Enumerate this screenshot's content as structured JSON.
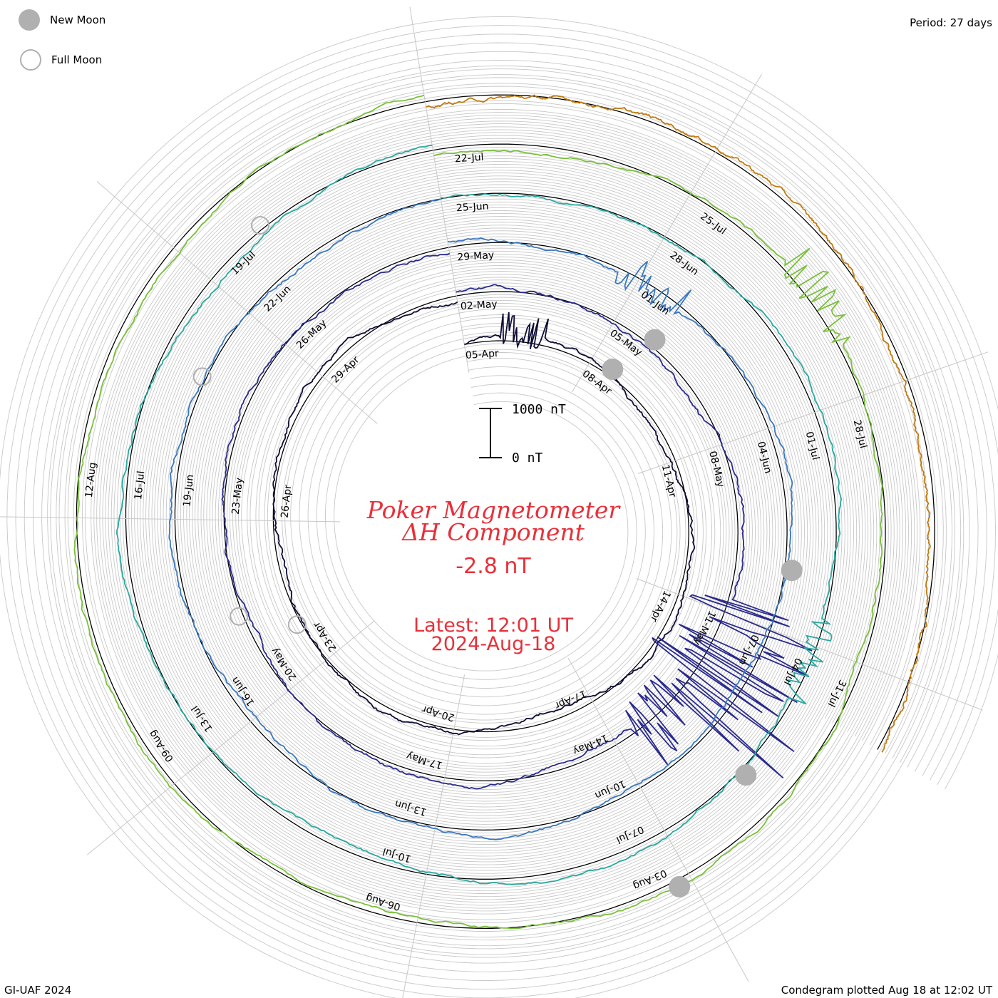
{
  "legend": {
    "new_moon": "New Moon",
    "full_moon": "Full Moon"
  },
  "header": {
    "period": "Period: 27 days"
  },
  "footer": {
    "credit": "GI-UAF 2024",
    "plotted": "Condegram plotted Aug 18 at 12:02 UT"
  },
  "center": {
    "title_line1": "Poker Magnetometer",
    "title_line2": "ΔH Component",
    "current_value": "-2.8 nT",
    "latest_time": "Latest: 12:01 UT",
    "latest_date": "2024-Aug-18",
    "scale_top": "1000 nT",
    "scale_bottom": "0 nT"
  },
  "colors": {
    "text_red": "#e8303a",
    "grid": "#c8c8c8",
    "moon": "#b0b0b0"
  },
  "chart_data": {
    "type": "line",
    "title": "Poker Magnetometer ΔH Component",
    "ylabel": "nT",
    "scale_bar": [
      0,
      1000
    ],
    "period_days": 27,
    "grid": true,
    "turns": [
      {
        "color": "#0d0d35",
        "start": "05-Apr",
        "labels": [
          "05-Apr",
          "08-Apr",
          "11-Apr",
          "14-Apr",
          "17-Apr",
          "20-Apr",
          "23-Apr",
          "26-Apr",
          "29-Apr"
        ]
      },
      {
        "color": "#2a2a8c",
        "start": "02-May",
        "labels": [
          "02-May",
          "05-May",
          "08-May",
          "11-May",
          "14-May",
          "17-May",
          "20-May",
          "23-May",
          "26-May"
        ]
      },
      {
        "color": "#3a78c0",
        "start": "29-May",
        "labels": [
          "29-May",
          "01-Jun",
          "04-Jun",
          "07-Jun",
          "10-Jun",
          "13-Jun",
          "16-Jun",
          "19-Jun",
          "22-Jun"
        ]
      },
      {
        "color": "#2aa8a0",
        "start": "25-Jun",
        "labels": [
          "25-Jun",
          "28-Jun",
          "01-Jul",
          "04-Jul",
          "07-Jul",
          "10-Jul",
          "13-Jul",
          "16-Jul",
          "19-Jul"
        ]
      },
      {
        "color": "#7ac03a",
        "start": "22-Jul",
        "labels": [
          "22-Jul",
          "25-Jul",
          "28-Jul",
          "31-Jul",
          "03-Aug",
          "06-Aug",
          "09-Aug",
          "12-Aug"
        ]
      },
      {
        "color": "#c07a10",
        "start": "15-Aug",
        "labels": []
      }
    ],
    "full_moon_dates": [
      "23-Apr",
      "23-May",
      "22-Jun",
      "21-Jul"
    ],
    "new_moon_dates": [
      "08-Apr",
      "08-May",
      "06-Jun",
      "05-Jul",
      "04-Aug"
    ],
    "disturbances": [
      {
        "date": "10-May",
        "peak_nT": 1700
      },
      {
        "date": "01-Jun",
        "peak_nT": 500
      },
      {
        "date": "03-Aug",
        "peak_nT": 500
      },
      {
        "date": "12-Aug",
        "peak_nT": 400
      }
    ],
    "latest_value_nT": -2.8
  }
}
